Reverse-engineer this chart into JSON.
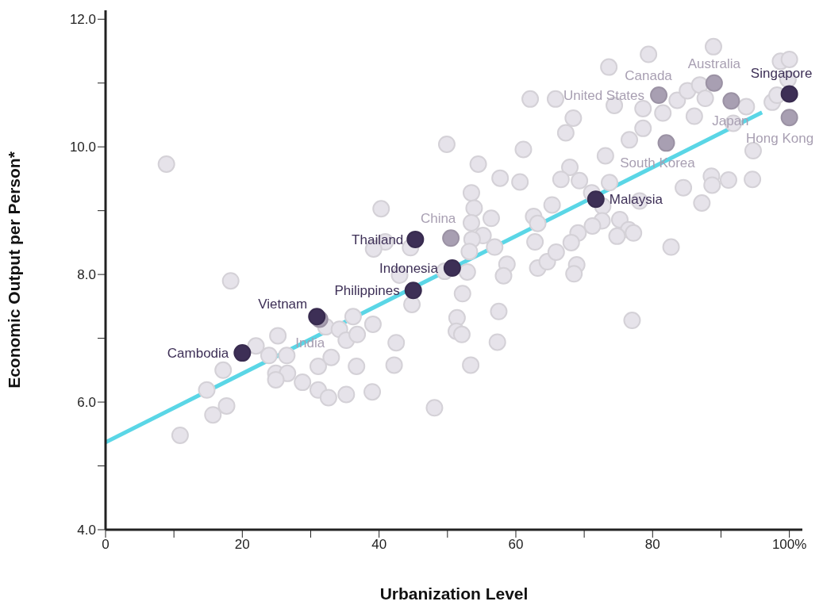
{
  "chart_data": {
    "type": "scatter",
    "xlabel": "Urbanization Level",
    "ylabel": "Economic Output per Person*",
    "xlim": [
      0,
      101.9
    ],
    "ylim": [
      4,
      12.14
    ],
    "xticks": [
      0,
      {
        "value": 10,
        "label": null
      },
      20,
      {
        "value": 30,
        "label": null
      },
      40,
      {
        "value": 50,
        "label": null
      },
      60,
      {
        "value": 70,
        "label": null
      },
      80,
      {
        "value": 90,
        "label": null
      },
      {
        "value": 100,
        "label": "100%"
      }
    ],
    "yticks": [
      {
        "value": 4,
        "label": "4.0"
      },
      {
        "value": 5,
        "label": null
      },
      {
        "value": 6,
        "label": "6.0"
      },
      {
        "value": 7,
        "label": null
      },
      {
        "value": 8,
        "label": "8.0"
      },
      {
        "value": 9,
        "label": null
      },
      {
        "value": 10,
        "label": "10.0"
      },
      {
        "value": 11,
        "label": null
      },
      {
        "value": 12,
        "label": "12.0"
      }
    ],
    "grid": false,
    "legend": false,
    "marker": "circle",
    "series": [
      {
        "type": "scatter",
        "color": "#e6e3ea",
        "x": [
          8.9,
          18.3,
          22.0,
          25.2,
          23.9,
          26.5,
          17.2,
          14.8,
          17.7,
          15.7,
          10.9,
          24.9,
          26.6,
          24.9,
          28.8,
          31.1,
          33.0,
          31.1,
          32.6,
          35.2,
          32.2,
          34.2,
          35.2,
          36.2,
          36.8,
          36.7,
          49.9,
          61.1,
          54.5,
          57.7,
          60.6,
          53.5,
          53.9,
          40.3,
          56.4,
          53.5,
          55.2,
          53.6,
          56.9,
          53.2,
          62.6,
          63.2,
          65.3,
          62.8,
          58.7,
          58.2,
          63.2,
          64.6,
          65.9,
          52.9,
          49.6,
          52.2,
          57.5,
          51.4,
          51.3,
          52.1,
          57.3,
          53.4,
          48.1,
          44.8,
          40.9,
          39.2,
          44.6,
          43.0,
          42.5,
          42.2,
          39.0,
          39.1,
          88.9,
          79.4,
          73.6,
          98.7,
          100.0,
          99.8,
          62.1,
          65.8,
          74.4,
          78.6,
          81.5,
          83.6,
          85.1,
          86.9,
          87.7,
          86.1,
          93.7,
          97.5,
          98.2,
          91.8,
          94.7,
          68.4,
          67.3,
          78.6,
          76.6,
          73.1,
          67.9,
          66.6,
          69.3,
          73.7,
          71.1,
          88.6,
          88.7,
          91.1,
          94.6,
          84.5,
          87.2,
          78.1,
          72.7,
          72.6,
          75.2,
          76.5,
          77.2,
          74.8,
          71.2,
          69.1,
          68.1,
          68.9,
          68.5,
          82.7,
          77.0
        ],
        "values": [
          9.73,
          7.9,
          6.88,
          7.04,
          6.73,
          6.73,
          6.5,
          6.19,
          5.94,
          5.8,
          5.48,
          6.45,
          6.45,
          6.35,
          6.31,
          6.56,
          6.7,
          6.19,
          6.07,
          6.12,
          7.18,
          7.14,
          6.97,
          7.34,
          7.06,
          6.56,
          10.04,
          9.96,
          9.73,
          9.51,
          9.45,
          9.28,
          9.04,
          9.03,
          8.88,
          8.81,
          8.61,
          8.55,
          8.43,
          8.36,
          8.91,
          8.8,
          9.09,
          8.51,
          8.16,
          7.98,
          8.1,
          8.2,
          8.35,
          8.04,
          8.05,
          7.7,
          7.42,
          7.32,
          7.11,
          7.06,
          6.94,
          6.58,
          5.91,
          7.53,
          8.51,
          8.4,
          8.42,
          7.99,
          6.93,
          6.58,
          6.16,
          7.22,
          11.57,
          11.45,
          11.25,
          11.34,
          11.37,
          11.06,
          10.75,
          10.75,
          10.65,
          10.6,
          10.53,
          10.73,
          10.88,
          10.97,
          10.76,
          10.48,
          10.63,
          10.7,
          10.81,
          10.37,
          9.94,
          10.45,
          10.22,
          10.29,
          10.11,
          9.86,
          9.68,
          9.49,
          9.47,
          9.44,
          9.28,
          9.54,
          9.4,
          9.48,
          9.49,
          9.36,
          9.12,
          9.15,
          9.07,
          8.84,
          8.86,
          8.7,
          8.65,
          8.6,
          8.76,
          8.65,
          8.5,
          8.15,
          8.01,
          8.43,
          7.28
        ]
      },
      {
        "type": "line",
        "color": "#5ad6e6",
        "marker": "none",
        "x": [
          0,
          96
        ],
        "values": [
          5.37,
          10.54
        ]
      },
      {
        "type": "scatter",
        "color": "#a89fb2",
        "x": [
          31.3,
          50.5,
          82.0,
          80.9,
          89.0,
          91.5,
          100.0
        ],
        "values": [
          7.3,
          8.57,
          10.06,
          10.81,
          11.0,
          10.72,
          10.46
        ]
      },
      {
        "type": "scatter",
        "color": "#3d2f56",
        "x": [
          20.0,
          30.9,
          45.3,
          50.7,
          45.0,
          71.7,
          100.0
        ],
        "values": [
          6.77,
          7.34,
          8.55,
          8.1,
          7.75,
          9.18,
          10.83
        ]
      }
    ],
    "annotations": [
      {
        "text": "Cambodia",
        "x": 20.0,
        "y": 6.77
      },
      {
        "text": "Vietnam",
        "x": 30.9,
        "y": 7.34
      },
      {
        "text": "India",
        "x": 31.3,
        "y": 7.3
      },
      {
        "text": "Thailand",
        "x": 45.3,
        "y": 8.55
      },
      {
        "text": "China",
        "x": 50.5,
        "y": 8.57
      },
      {
        "text": "Indonesia",
        "x": 50.7,
        "y": 8.1
      },
      {
        "text": "Philippines",
        "x": 45.0,
        "y": 7.75
      },
      {
        "text": "Malaysia",
        "x": 71.7,
        "y": 9.18
      },
      {
        "text": "South Korea",
        "x": 82.0,
        "y": 10.06
      },
      {
        "text": "United States",
        "x": 80.9,
        "y": 10.81
      },
      {
        "text": "Canada",
        "x": 80.9,
        "y": 10.81
      },
      {
        "text": "Australia",
        "x": 89.0,
        "y": 11.0
      },
      {
        "text": "Japan",
        "x": 91.5,
        "y": 10.72
      },
      {
        "text": "Singapore",
        "x": 100.0,
        "y": 10.83
      },
      {
        "text": "Hong Kong",
        "x": 100.0,
        "y": 10.46
      }
    ]
  }
}
